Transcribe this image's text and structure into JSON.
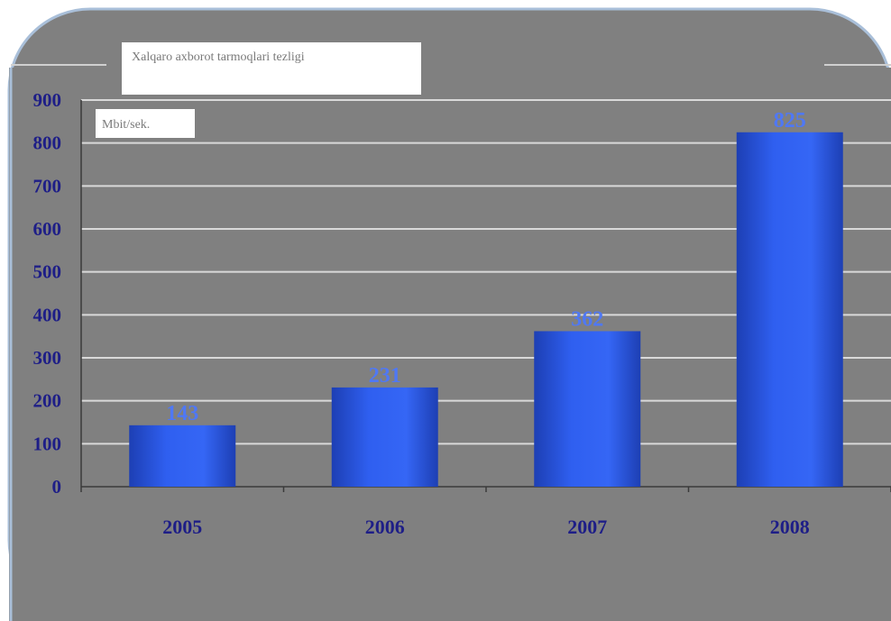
{
  "chart_data": {
    "type": "bar",
    "title": "Xalqaro axborot tarmoqlari tezligi",
    "ylabel": "Mbit/sek.",
    "xlabel": "",
    "categories": [
      "2005",
      "2006",
      "2007",
      "2008"
    ],
    "series": [
      {
        "values": [
          143,
          231,
          362,
          825
        ]
      }
    ],
    "data_labels": [
      "143",
      "231",
      "362",
      "825"
    ],
    "ylim": [
      0,
      900
    ],
    "yticks": [
      "0",
      "100",
      "200",
      "300",
      "400",
      "500",
      "600",
      "700",
      "800",
      "900"
    ],
    "grid": true,
    "legend": "none"
  },
  "colors": {
    "background": "#808080",
    "bar_main": "#2f5ff0",
    "bar_dark": "#1d3fb4",
    "tick_label": "#1e1e87",
    "data_label": "#4f78f5",
    "gridline": "#d9d9d9",
    "frame_glow": "#a9bfd9"
  }
}
